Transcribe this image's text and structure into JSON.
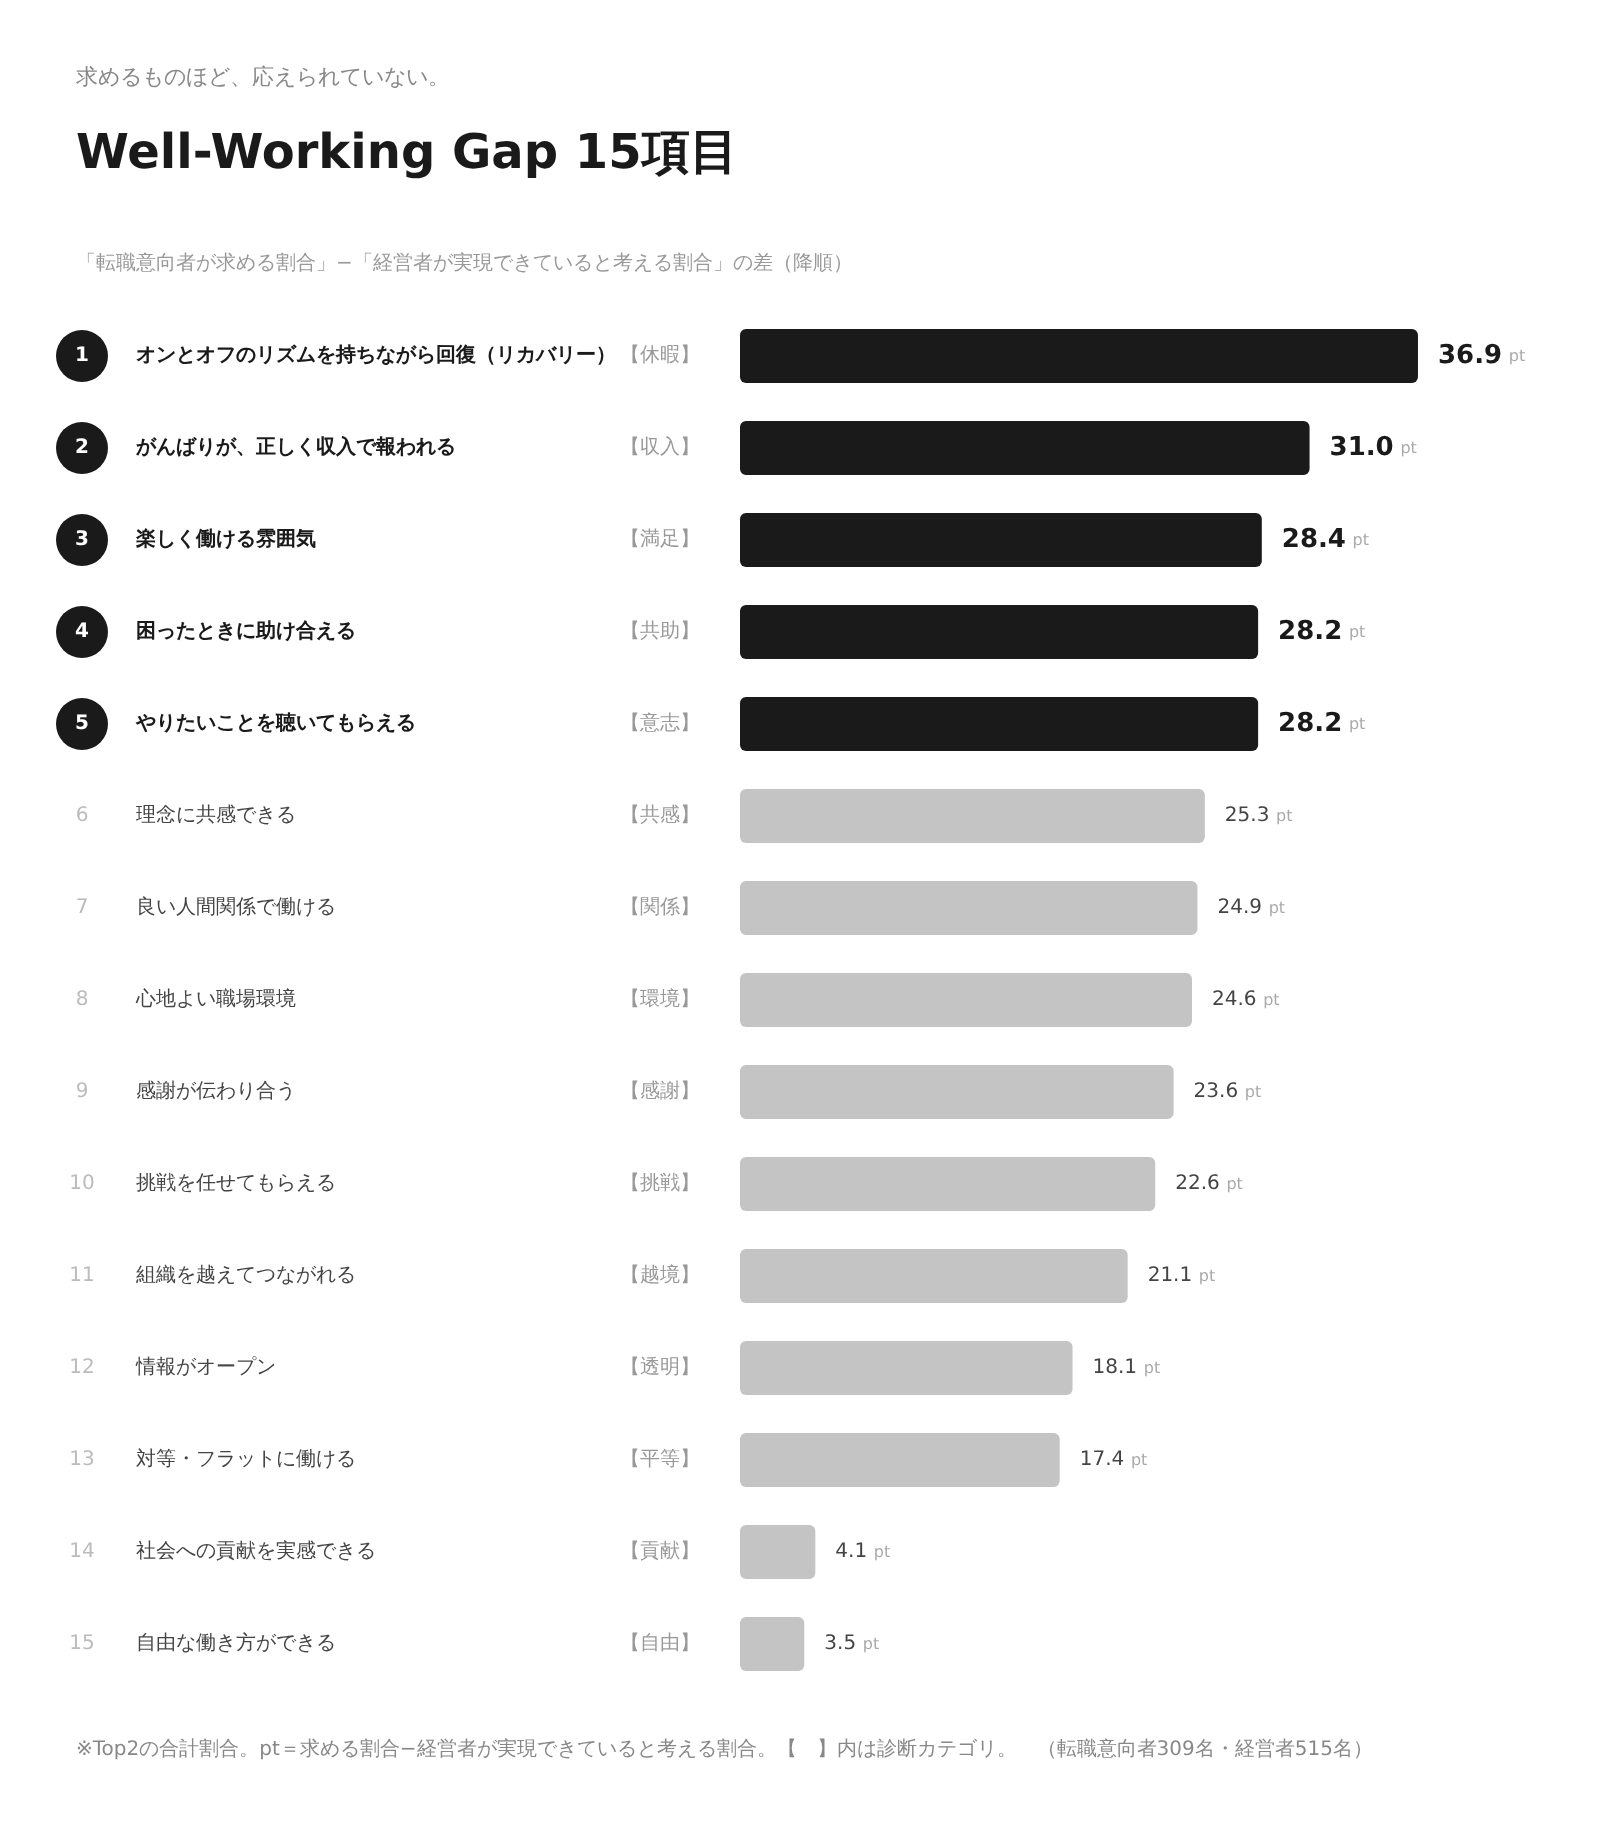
{
  "chart_data": {
    "type": "bar",
    "orientation": "horizontal",
    "title": "Well-Working Gap 15項目",
    "subtitle": "求めるものほど、応えられていない。",
    "categories": [
      "オンとオフのリズムを持ちながら回復（リカバリー）",
      "がんばりが、正しく収入で報われる",
      "楽しく働ける雰囲気",
      "困ったときに助け合える",
      "やりたいことを聴いてもらえる",
      "理念に共感できる",
      "良い人間関係で働ける",
      "心地よい職場環境",
      "感謝が伝わり合う",
      "挑戦を任せてもらえる",
      "組織を越えてつながれる",
      "情報がオープン",
      "対等・フラットに働ける",
      "社会への貢献を実感できる",
      "自由な働き方ができる"
    ],
    "values": [
      36.9,
      31.0,
      28.4,
      28.2,
      28.2,
      25.3,
      24.9,
      24.6,
      23.6,
      22.6,
      21.1,
      18.1,
      17.4,
      4.1,
      3.5
    ],
    "value_labels": [
      "36.9 pt",
      "31.0 pt",
      "28.4 pt",
      "28.2 pt",
      "28.2 pt",
      "25.3 pt",
      "24.9 pt",
      "24.6 pt",
      "23.6 pt",
      "22.6 pt",
      "21.1 pt",
      "18.1 pt",
      "17.4 pt",
      "4.1 pt",
      "3.5 pt"
    ],
    "colors": [
      "#1a1a1a",
      "#1a1a1a",
      "#1a1a1a",
      "#1a1a1a",
      "#1a1a1a",
      "#c4c4c4",
      "#c4c4c4",
      "#c4c4c4",
      "#c4c4c4",
      "#c4c4c4",
      "#c4c4c4",
      "#c4c4c4",
      "#c4c4c4",
      "#c4c4c4",
      "#c4c4c4"
    ],
    "annotations": [
      "「転職意向者が求める割合」−「経営者が実現できていると考える割合」の差（降順）",
      "※Top2の合計割合。pt＝求める割合−経営者が実現できていると考える割合。【　】内は診断カテゴリ。　（転職意向者309名・経営者515名）",
      "1",
      "2",
      "3",
      "4",
      "5",
      "6",
      "7",
      "8",
      "9",
      "10",
      "11",
      "12",
      "13",
      "14",
      "15",
      "【休暇】",
      "【収入】",
      "【満足】",
      "【共助】",
      "【意志】",
      "【共感】",
      "【関係】",
      "【環境】",
      "【感謝】",
      "【挑戦】",
      "【越境】",
      "【透明】",
      "【平等】",
      "【貢献】",
      "【自由】"
    ]
  }
}
